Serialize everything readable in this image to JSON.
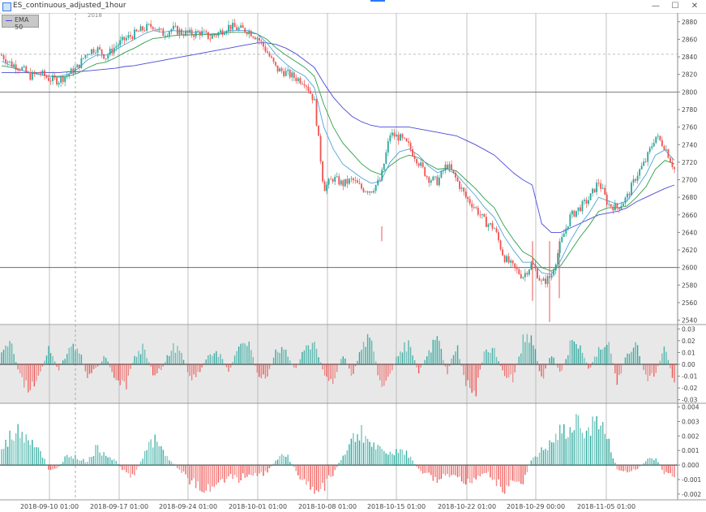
{
  "window": {
    "title": "ES_continuous_adjusted_1hour",
    "minimize": "—",
    "maximize": "☐",
    "close": "✕"
  },
  "legend": {
    "label": "EMA 50",
    "color": "#4a4ad8"
  },
  "crosshair": {
    "label": "2018"
  },
  "colors": {
    "up": "#26a69a",
    "down": "#ef5350",
    "ema_fast": "#4ca3dd",
    "ema_mid": "#2e9e4a",
    "ema_slow": "#4a4ad8",
    "panel_bg": "#e8e8e8"
  },
  "chart_data": [
    {
      "type": "candlestick",
      "ylim": [
        2535,
        2890
      ],
      "yticks": [
        2540,
        2560,
        2580,
        2600,
        2620,
        2640,
        2660,
        2680,
        2700,
        2720,
        2740,
        2760,
        2780,
        2800,
        2820,
        2840,
        2860,
        2880
      ],
      "reference_line": 2843,
      "close_path": [
        2842,
        2832,
        2828,
        2818,
        2822,
        2815,
        2813,
        2820,
        2828,
        2845,
        2850,
        2840,
        2852,
        2860,
        2866,
        2872,
        2876,
        2866,
        2872,
        2868,
        2866,
        2868,
        2862,
        2868,
        2875,
        2872,
        2870,
        2862,
        2846,
        2826,
        2822,
        2816,
        2812,
        2790,
        2690,
        2702,
        2695,
        2700,
        2690,
        2688,
        2700,
        2752,
        2748,
        2738,
        2720,
        2702,
        2698,
        2718,
        2700,
        2680,
        2668,
        2652,
        2645,
        2612,
        2600,
        2590,
        2605,
        2582,
        2590,
        2628,
        2658,
        2668,
        2678,
        2698,
        2672,
        2668,
        2680,
        2705,
        2722,
        2750,
        2738,
        2712
      ],
      "ema_fast": [
        2835,
        2830,
        2825,
        2822,
        2820,
        2818,
        2818,
        2820,
        2826,
        2836,
        2842,
        2842,
        2848,
        2854,
        2860,
        2866,
        2870,
        2868,
        2870,
        2869,
        2868,
        2868,
        2866,
        2867,
        2870,
        2870,
        2870,
        2866,
        2856,
        2842,
        2832,
        2824,
        2818,
        2805,
        2760,
        2735,
        2718,
        2710,
        2702,
        2696,
        2698,
        2720,
        2732,
        2735,
        2728,
        2716,
        2708,
        2712,
        2706,
        2694,
        2682,
        2668,
        2657,
        2636,
        2620,
        2606,
        2606,
        2594,
        2592,
        2608,
        2630,
        2648,
        2662,
        2680,
        2676,
        2672,
        2676,
        2690,
        2706,
        2728,
        2734,
        2722
      ],
      "ema_mid": [
        2830,
        2828,
        2825,
        2822,
        2820,
        2818,
        2817,
        2818,
        2821,
        2827,
        2832,
        2834,
        2839,
        2845,
        2850,
        2856,
        2861,
        2862,
        2864,
        2865,
        2865,
        2866,
        2865,
        2866,
        2868,
        2868,
        2868,
        2866,
        2860,
        2850,
        2842,
        2835,
        2828,
        2818,
        2786,
        2760,
        2742,
        2730,
        2718,
        2710,
        2706,
        2716,
        2724,
        2728,
        2725,
        2718,
        2712,
        2713,
        2710,
        2700,
        2690,
        2678,
        2668,
        2648,
        2632,
        2618,
        2612,
        2600,
        2596,
        2602,
        2618,
        2634,
        2648,
        2664,
        2668,
        2668,
        2670,
        2680,
        2692,
        2712,
        2722,
        2718
      ],
      "ema_slow": [
        2822,
        2822,
        2822,
        2822,
        2822,
        2822,
        2822,
        2823,
        2823,
        2824,
        2825,
        2826,
        2827,
        2829,
        2830,
        2832,
        2834,
        2836,
        2838,
        2840,
        2842,
        2844,
        2846,
        2848,
        2850,
        2852,
        2854,
        2856,
        2856,
        2854,
        2850,
        2844,
        2836,
        2828,
        2810,
        2794,
        2782,
        2772,
        2766,
        2762,
        2760,
        2760,
        2760,
        2760,
        2758,
        2756,
        2754,
        2752,
        2750,
        2745,
        2740,
        2734,
        2728,
        2718,
        2708,
        2700,
        2694,
        2650,
        2640,
        2640,
        2645,
        2650,
        2655,
        2660,
        2662,
        2664,
        2668,
        2675,
        2680,
        2685,
        2690,
        2694
      ],
      "spike_lows": [
        2647,
        2562,
        2538,
        2565
      ]
    },
    {
      "type": "bar",
      "ylim": [
        -0.033,
        0.033
      ],
      "yticks": [
        0.03,
        0.02,
        0.01,
        0.0,
        -0.01,
        -0.02,
        -0.03
      ],
      "ytick_labels": [
        "0.03",
        "0.02",
        "0.01",
        "0.00",
        "-0.01",
        "-0.02",
        "-0.03"
      ],
      "values": [
        0.012,
        0.02,
        -0.015,
        -0.028,
        -0.01,
        0.016,
        -0.006,
        0.014,
        0.022,
        -0.012,
        -0.004,
        0.01,
        -0.02,
        -0.026,
        0.008,
        0.018,
        -0.01,
        -0.004,
        0.02,
        0.012,
        -0.018,
        -0.006,
        0.014,
        0.01,
        -0.008,
        0.022,
        0.026,
        -0.01,
        -0.016,
        0.018,
        0.012,
        -0.006,
        0.016,
        0.024,
        -0.008,
        -0.02,
        0.012,
        -0.014,
        0.02,
        0.03,
        -0.026,
        -0.012,
        0.016,
        0.02,
        -0.008,
        0.01,
        0.03,
        -0.01,
        0.022,
        -0.02,
        -0.03,
        0.016,
        0.014,
        -0.01,
        -0.016,
        0.024,
        0.028,
        -0.018,
        0.012,
        -0.012,
        0.02,
        0.022,
        -0.006,
        0.016,
        0.026,
        -0.02,
        0.012,
        0.02,
        -0.016,
        -0.01,
        0.02,
        -0.022
      ]
    },
    {
      "type": "bar",
      "ylim": [
        -0.0024,
        0.0042
      ],
      "yticks": [
        0.004,
        0.003,
        0.002,
        0.001,
        0.0,
        -0.001,
        -0.002
      ],
      "ytick_labels": [
        "0.004",
        "0.003",
        "0.002",
        "0.001",
        "0.000",
        "-0.001",
        "-0.002"
      ],
      "values": [
        0.0012,
        0.0026,
        0.003,
        0.0024,
        0.0014,
        -0.0004,
        -0.0002,
        0.001,
        0.0006,
        0.0003,
        0.0014,
        0.001,
        0.0004,
        -0.0006,
        -0.001,
        0.001,
        0.0022,
        0.0012,
        0.0002,
        -0.0006,
        -0.0014,
        -0.002,
        -0.0018,
        -0.0014,
        -0.001,
        -0.0012,
        -0.0008,
        -0.001,
        -0.0006,
        0.0004,
        0.001,
        -0.0004,
        -0.0016,
        -0.0022,
        -0.0018,
        -0.0008,
        0.0008,
        0.0022,
        0.003,
        0.0018,
        0.0012,
        0.001,
        0.0014,
        0.0008,
        -0.0004,
        -0.0008,
        -0.0014,
        -0.0008,
        -0.0012,
        -0.0016,
        -0.001,
        -0.0006,
        -0.0012,
        -0.0022,
        -0.0018,
        -0.0014,
        0.0006,
        0.0012,
        0.0018,
        0.0028,
        0.003,
        0.0036,
        0.003,
        0.004,
        0.002,
        -0.0004,
        -0.0006,
        -0.0004,
        0.0004,
        0.0006,
        -0.0008,
        -0.001
      ]
    }
  ],
  "x_axis": {
    "labels": [
      "2018-09-10 01:00",
      "2018-09-17 01:00",
      "2018-09-24 01:00",
      "2018-10-01 01:00",
      "2018-10-08 01:00",
      "2018-10-15 01:00",
      "2018-10-22 01:00",
      "2018-10-29 00:00",
      "2018-11-05 01:00"
    ]
  }
}
